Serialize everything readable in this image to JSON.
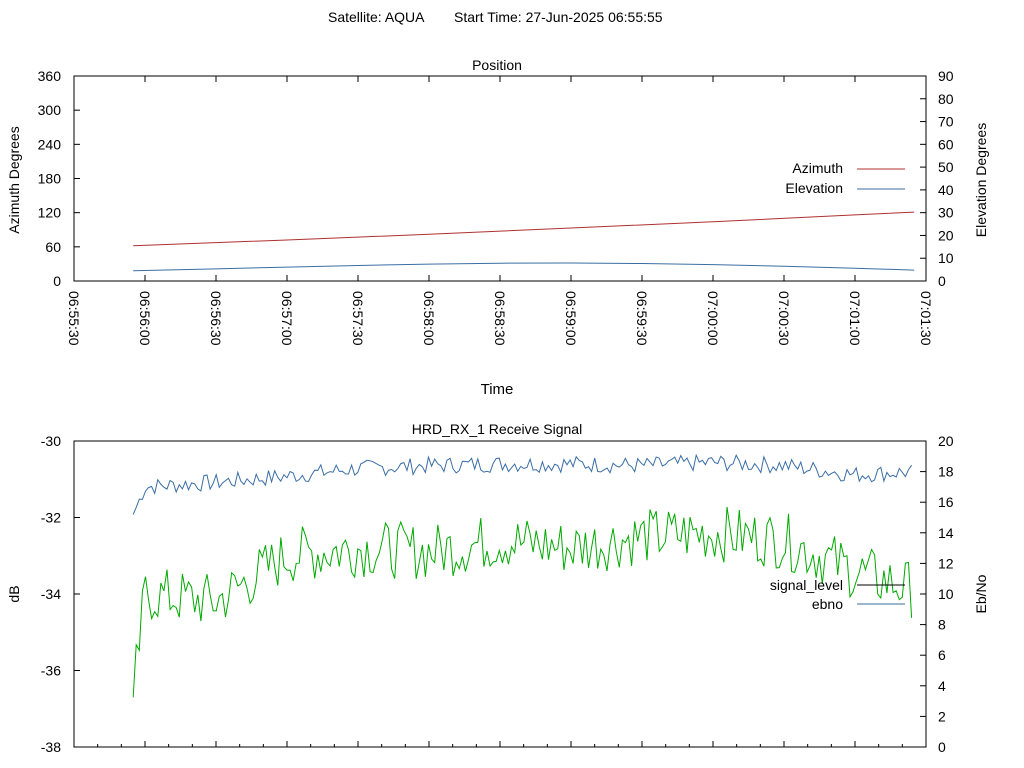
{
  "header": {
    "satellite_text": "Satellite: AQUA",
    "start_time_text": "Start Time: 27-Jun-2025 06:55:55"
  },
  "chart_data": [
    {
      "type": "line",
      "title": "Position",
      "xlabel": "Time",
      "ylabel": "Azimuth Degrees",
      "y2label": "Elevation Degrees",
      "x_range": [
        "06:55:30",
        "07:01:30"
      ],
      "ylim": [
        0,
        360
      ],
      "y2lim": [
        0,
        90
      ],
      "x_ticks": [
        "06:55:30",
        "06:56:00",
        "06:56:30",
        "06:57:00",
        "06:57:30",
        "06:58:00",
        "06:58:30",
        "06:59:00",
        "06:59:30",
        "07:00:00",
        "07:00:30",
        "07:01:00",
        "07:01:30"
      ],
      "y_ticks": [
        "0",
        "60",
        "120",
        "180",
        "240",
        "300",
        "360"
      ],
      "y2_ticks": [
        "0",
        "10",
        "20",
        "30",
        "40",
        "50",
        "60",
        "70",
        "80",
        "90"
      ],
      "grid": false,
      "legend_position": "right",
      "series": [
        {
          "name": "Azimuth",
          "axis": "left",
          "color": "#b03030",
          "x": [
            "06:55:55",
            "06:57:00",
            "06:58:00",
            "06:59:00",
            "07:00:00",
            "07:01:00",
            "07:01:25"
          ],
          "values": [
            62,
            72,
            82,
            93,
            104,
            116,
            121
          ]
        },
        {
          "name": "Elevation",
          "axis": "right",
          "color": "#3a6ea5",
          "x": [
            "06:55:55",
            "06:56:30",
            "06:57:00",
            "06:57:30",
            "06:58:00",
            "06:58:30",
            "06:59:00",
            "06:59:30",
            "07:00:00",
            "07:00:30",
            "07:01:00",
            "07:01:25"
          ],
          "values": [
            4.5,
            5.3,
            6.1,
            6.8,
            7.4,
            7.8,
            7.9,
            7.7,
            7.2,
            6.5,
            5.6,
            4.8
          ]
        }
      ]
    },
    {
      "type": "line",
      "title": "HRD_RX_1 Receive Signal",
      "ylabel": "dB",
      "y2label": "Eb/No",
      "ylim": [
        -38,
        -30
      ],
      "y2lim": [
        0,
        20
      ],
      "y_ticks": [
        "-30",
        "-32",
        "-34",
        "-36",
        "-38"
      ],
      "y2_ticks": [
        "0",
        "2",
        "4",
        "6",
        "8",
        "10",
        "12",
        "14",
        "16",
        "18",
        "20"
      ],
      "grid": false,
      "legend_position": "right",
      "series": [
        {
          "name": "signal_level",
          "axis": "left",
          "color": "#000000",
          "legend_only": true
        },
        {
          "name": "ebno",
          "axis": "right",
          "color": "#3a6ea5",
          "x": [
            "06:55:55",
            "06:56:00",
            "06:56:30",
            "06:57:00",
            "06:57:30",
            "06:58:00",
            "06:58:30",
            "06:59:00",
            "06:59:30",
            "07:00:00",
            "07:00:30",
            "07:01:00",
            "07:01:25"
          ],
          "values": [
            15.2,
            17.0,
            17.3,
            17.7,
            18.2,
            18.4,
            18.5,
            18.5,
            18.4,
            18.6,
            18.4,
            17.8,
            18.0
          ]
        },
        {
          "name": "",
          "axis": "left",
          "color": "#00aa00",
          "x": [
            "06:55:55",
            "06:56:00",
            "06:56:30",
            "06:57:00",
            "06:57:30",
            "06:58:00",
            "06:58:30",
            "06:59:00",
            "06:59:30",
            "07:00:00",
            "07:00:30",
            "07:01:00",
            "07:01:25"
          ],
          "values": [
            -36.7,
            -34.0,
            -34.2,
            -33.0,
            -32.8,
            -32.9,
            -32.6,
            -32.8,
            -32.5,
            -32.4,
            -32.6,
            -33.4,
            -33.9
          ]
        }
      ]
    }
  ]
}
